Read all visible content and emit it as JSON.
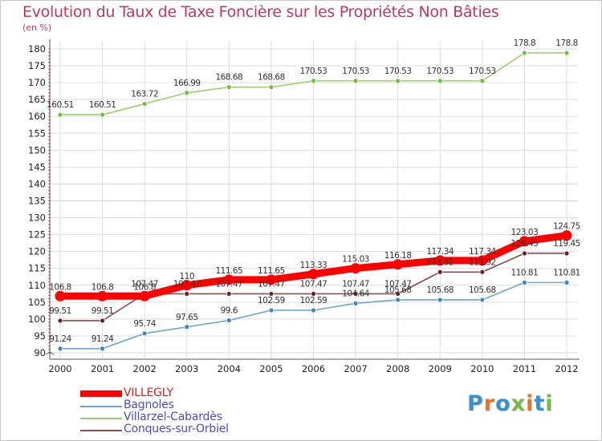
{
  "title": "Evolution du Taux de Taxe Foncière sur les Propriétés Non Bâties",
  "unit": "(en %)",
  "logo": {
    "letters": [
      "P",
      "r",
      "o",
      "x",
      "i",
      "t",
      "i"
    ],
    "colors": [
      "#3b8fd1",
      "#e8742a",
      "#3b8fd1",
      "#7ab648",
      "#e8742a",
      "#3b8fd1",
      "#7ab648"
    ]
  },
  "chart_data": {
    "type": "line",
    "title": "Evolution du Taux de Taxe Foncière sur les Propriétés Non Bâties",
    "ylabel": "(en %)",
    "xlabel": "",
    "ylim": [
      90,
      180
    ],
    "yticks": [
      90,
      95,
      100,
      105,
      110,
      115,
      120,
      125,
      130,
      135,
      140,
      145,
      150,
      155,
      160,
      165,
      170,
      175,
      180
    ],
    "ytick_labels": [
      "90",
      "95",
      "100",
      "105",
      "110",
      "115",
      "120",
      "125",
      "130",
      "135",
      "140",
      "145",
      "150",
      "155",
      "160",
      "165",
      "170",
      "175",
      "180"
    ],
    "grid": true,
    "legend_position": "bottom-left",
    "x": [
      "2000",
      "2001",
      "2002",
      "2003",
      "2004",
      "2005",
      "2006",
      "2007",
      "2008",
      "2009",
      "2010",
      "2011",
      "2012"
    ],
    "series": [
      {
        "name": "VILLEGLY",
        "color": "#ff0000",
        "marker_color": "#ff0000",
        "emphasis": true,
        "values": [
          106.8,
          106.8,
          106.8,
          110,
          111.65,
          111.65,
          113.33,
          115.03,
          116.18,
          117.34,
          117.34,
          123.03,
          124.75
        ],
        "labels": [
          "106.8",
          "106.8",
          "106.8",
          "110",
          "111.65",
          "111.65",
          "113.33",
          "115.03",
          "116.18",
          "117.34",
          "117.34",
          "123.03",
          "124.75"
        ]
      },
      {
        "name": "Bagnoles",
        "color": "#6ea4cf",
        "marker_color": "#3b86c4",
        "emphasis": false,
        "values": [
          91.24,
          91.24,
          95.74,
          97.65,
          99.6,
          102.59,
          102.59,
          104.64,
          105.68,
          105.68,
          105.68,
          110.81,
          110.81
        ],
        "labels": [
          "91.24",
          "91.24",
          "95.74",
          "97.65",
          "99.6",
          "102.59",
          "102.59",
          "104.64",
          "105.68",
          "105.68",
          "105.68",
          "110.81",
          "110.81"
        ]
      },
      {
        "name": "Villarzel-Cabardès",
        "color": "#9ccf6c",
        "marker_color": "#6ebf3b",
        "emphasis": false,
        "values": [
          160.51,
          160.51,
          163.72,
          166.99,
          168.68,
          168.68,
          170.53,
          170.53,
          170.53,
          170.53,
          170.53,
          178.8,
          178.8
        ],
        "labels": [
          "160.51",
          "160.51",
          "163.72",
          "166.99",
          "168.68",
          "168.68",
          "170.53",
          "170.53",
          "170.53",
          "170.53",
          "170.53",
          "178.8",
          "178.8"
        ]
      },
      {
        "name": "Conques-sur-Orbiel",
        "color": "#8a4b4b",
        "marker_color": "#6b1f2a",
        "emphasis": false,
        "values": [
          99.51,
          99.51,
          107.47,
          107.47,
          107.47,
          107.47,
          107.47,
          107.47,
          107.47,
          113.92,
          113.92,
          119.45,
          119.45
        ],
        "labels": [
          "99.51",
          "99.51",
          "107.47",
          "107.47",
          "107.47",
          "107.47",
          "107.47",
          "107.47",
          "107.47",
          "113.92",
          "113.92",
          "119.45",
          "119.45"
        ]
      }
    ]
  }
}
